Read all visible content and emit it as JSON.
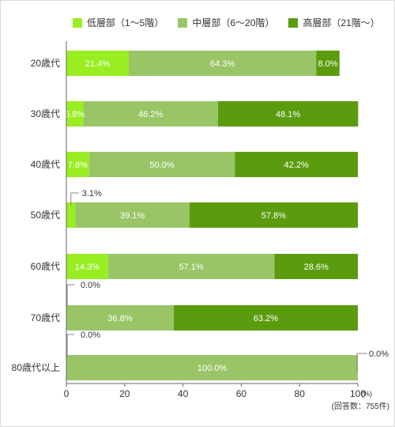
{
  "chart_data": {
    "type": "bar",
    "orientation": "horizontal",
    "stacked": true,
    "categories": [
      "20歳代",
      "30歳代",
      "40歳代",
      "50歳代",
      "60歳代",
      "70歳代",
      "80歳代以上"
    ],
    "series": [
      {
        "name": "低層部（1～5階）",
        "color": "#99ee22",
        "values": [
          21.4,
          5.8,
          7.8,
          3.1,
          14.3,
          0.0,
          0.0
        ]
      },
      {
        "name": "中層部（6～20階）",
        "color": "#99c567",
        "values": [
          64.3,
          46.2,
          50.0,
          39.1,
          57.1,
          36.8,
          100.0
        ]
      },
      {
        "name": "高層部（21階～）",
        "color": "#5b9c0f",
        "values": [
          8.0,
          48.1,
          42.2,
          57.8,
          28.6,
          63.2,
          0.0
        ]
      }
    ],
    "value_labels": [
      [
        "21.4%",
        "64.3%",
        "8.0%"
      ],
      [
        "5.8%",
        "46.2%",
        "48.1%"
      ],
      [
        "7.8%",
        "50.0%",
        "42.2%"
      ],
      [
        "3.1%",
        "39.1%",
        "57.8%"
      ],
      [
        "14.3%",
        "57.1%",
        "28.6%"
      ],
      [
        "0.0%",
        "36.8%",
        "63.2%"
      ],
      [
        "0.0%",
        "100.0%",
        "0.0%"
      ]
    ],
    "xlim": [
      0,
      100
    ],
    "xticks": [
      0,
      20,
      40,
      60,
      80,
      100
    ],
    "xunit": "(%)",
    "note": "(回答数：755件)",
    "legend_position": "top",
    "grid": false
  }
}
